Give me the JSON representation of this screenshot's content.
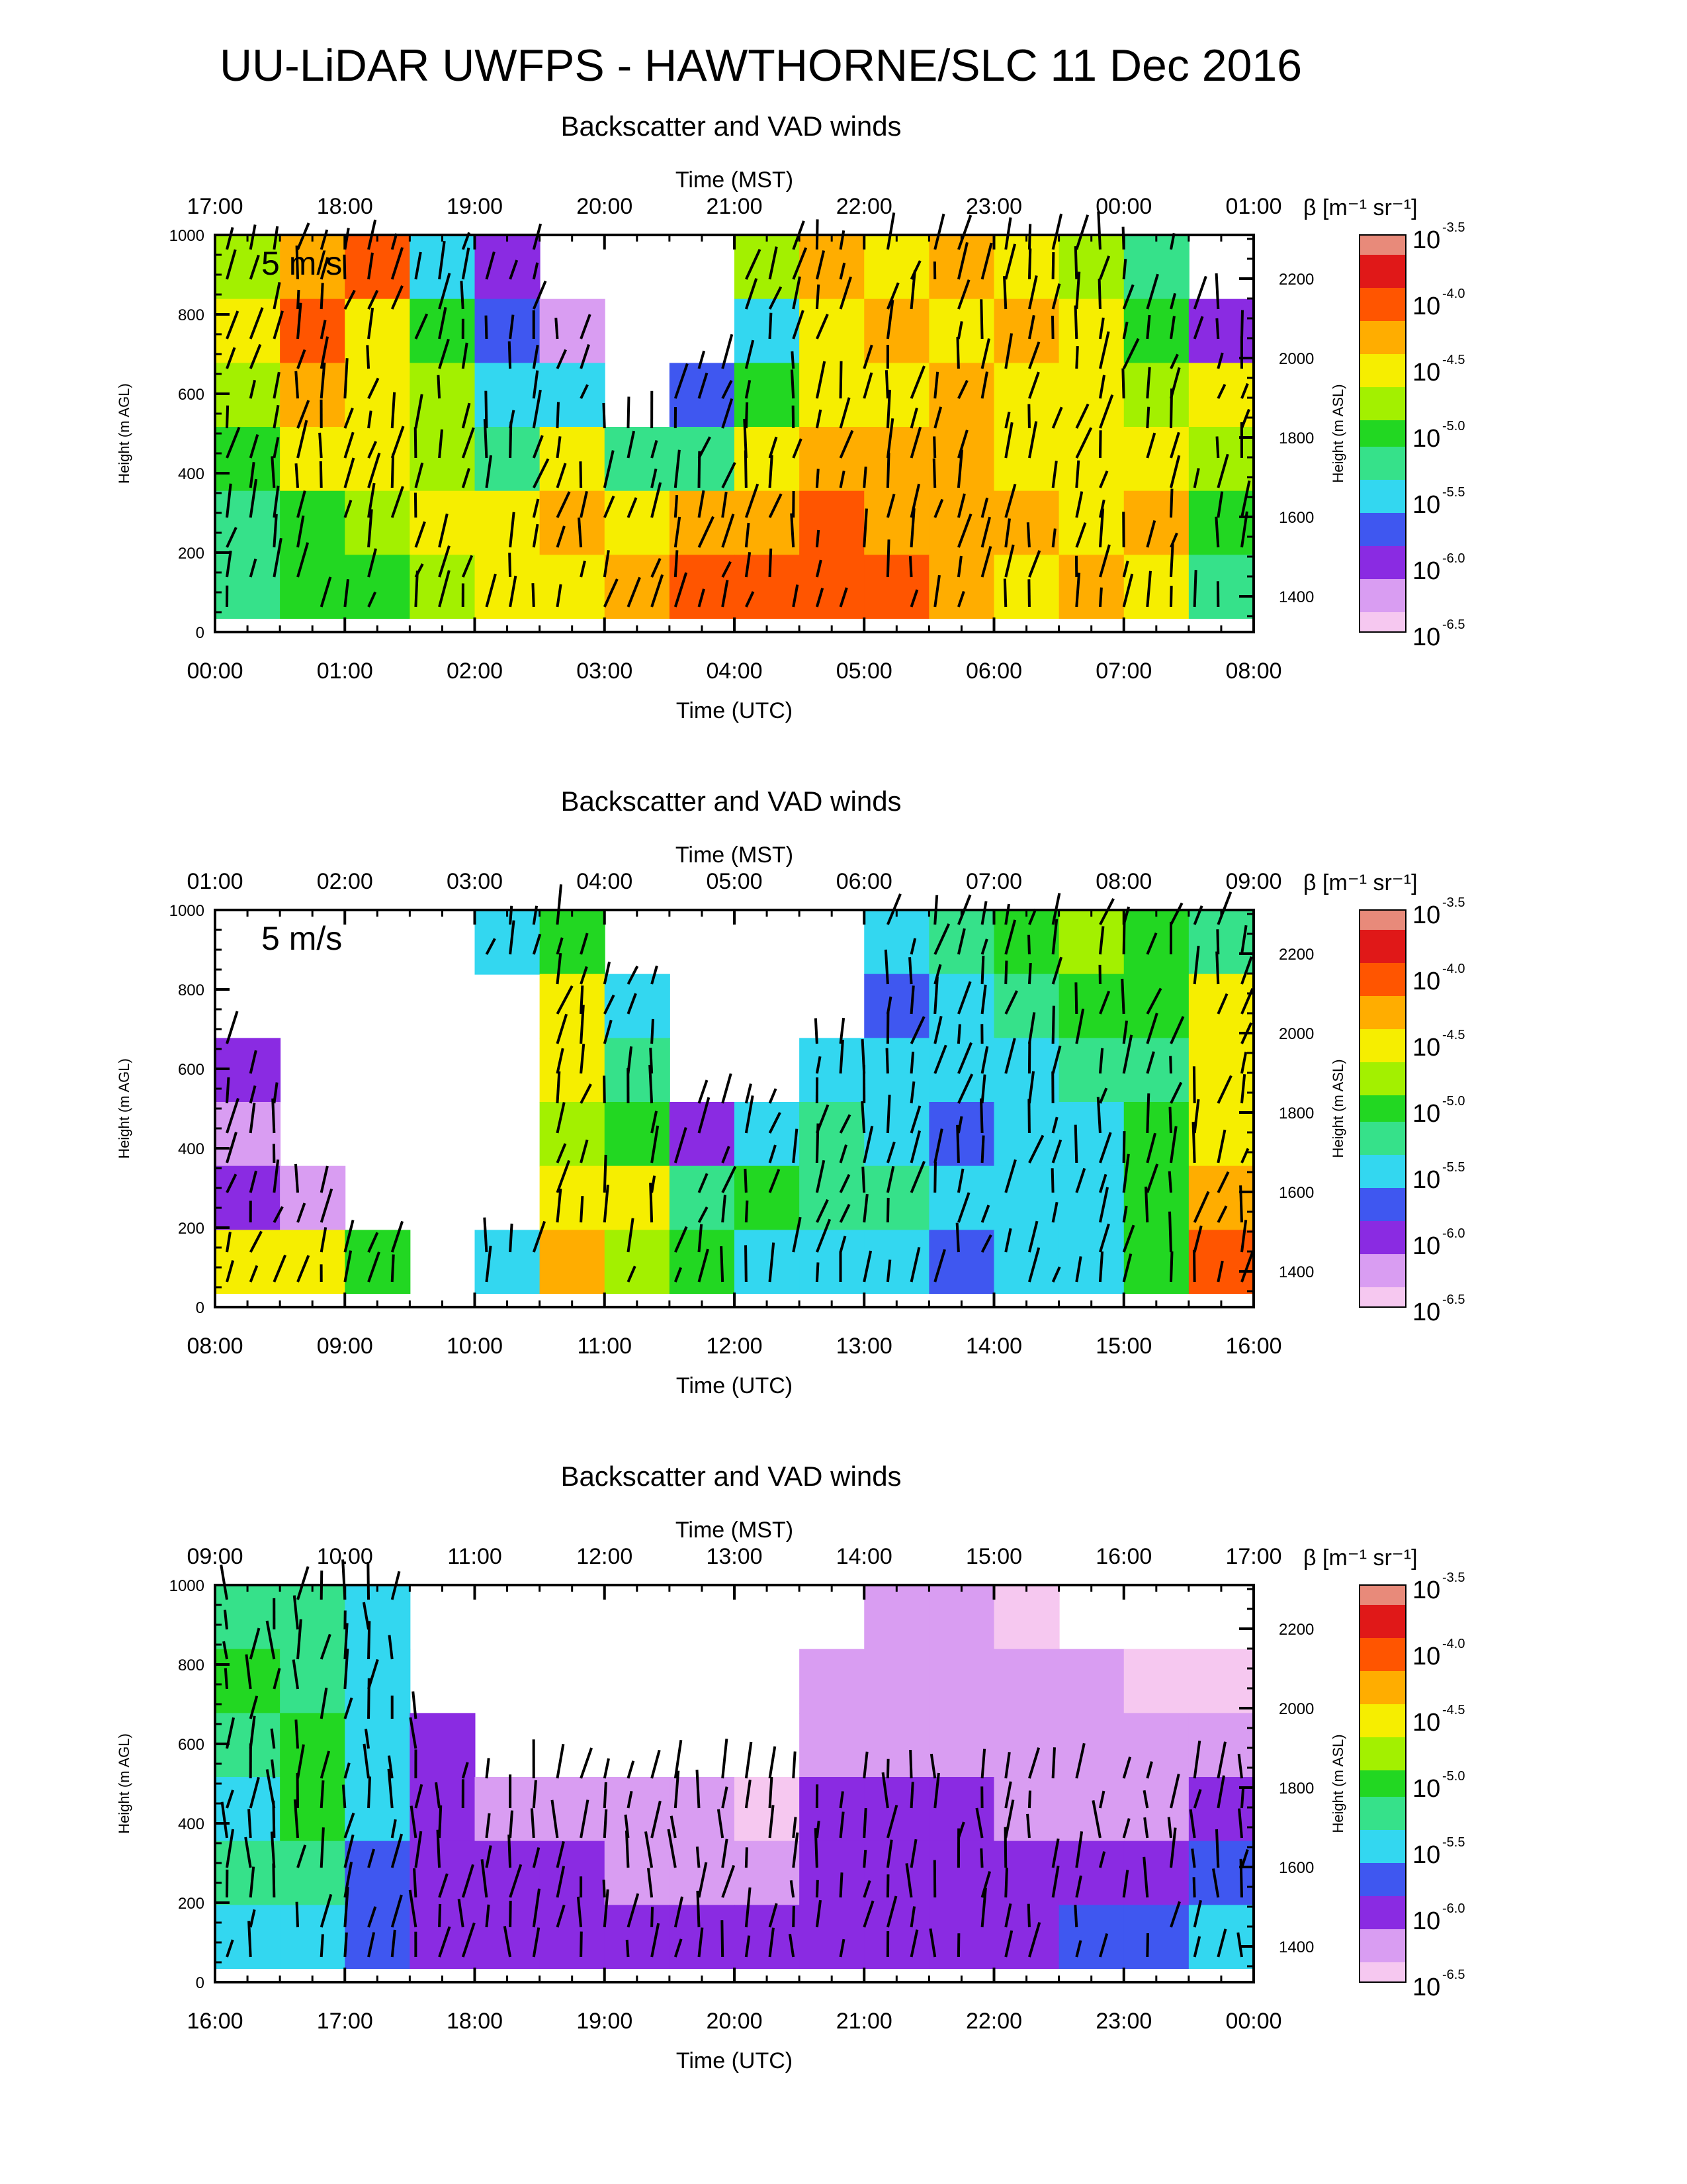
{
  "title": "UU-LiDAR UWFPS - HAWTHORNE/SLC 11 Dec 2016",
  "colors": {
    "scale": [
      "#f6c8f0",
      "#d99df2",
      "#8a2be2",
      "#3f57f0",
      "#33d7f0",
      "#36e18a",
      "#22d722",
      "#a3f000",
      "#f6ee00",
      "#ffad00",
      "#ff5500",
      "#e01818",
      "#e88a7a"
    ],
    "background": "#ffffff",
    "vectors": "#000000"
  },
  "chart_data": [
    {
      "type": "heatmap",
      "title": "Backscatter and VAD winds",
      "xlabel": "Time (UTC)",
      "x2label": "Time (MST)",
      "ylabel": "Height (m AGL)",
      "y2label": "Height (m ASL)",
      "xticks": [
        "00:00",
        "01:00",
        "02:00",
        "03:00",
        "04:00",
        "05:00",
        "06:00",
        "07:00",
        "08:00"
      ],
      "x2ticks": [
        "17:00",
        "18:00",
        "19:00",
        "20:00",
        "21:00",
        "22:00",
        "23:00",
        "00:00",
        "01:00"
      ],
      "yticks": [
        0,
        200,
        400,
        600,
        800,
        1000
      ],
      "y2ticks": [
        1400,
        1600,
        1800,
        2000,
        2200
      ],
      "ylim": [
        0,
        1000
      ],
      "y2lim": [
        1310,
        2310
      ],
      "xlim_hours": [
        0,
        8
      ],
      "colorbar": {
        "label_symbol": "β",
        "label_units": "[m-1 sr-1]",
        "label_text": "β [m⁻¹ sr⁻¹]",
        "exponents": [
          "-3.5",
          "-4.0",
          "-4.5",
          "-5.0",
          "-5.5",
          "-6.0",
          "-6.5"
        ],
        "base": "10",
        "range_log10": [
          -6.5,
          -3.5
        ]
      },
      "vector_key": "5 m/s",
      "backscatter_log10": [
        [
          -4.8,
          -4.2,
          -3.9,
          -5.4,
          -6.0,
          -6.6,
          -6.6,
          -6.6,
          -4.8,
          -4.2,
          -4.6,
          -4.3,
          -4.4,
          -4.8,
          -5.2,
          -6.6
        ],
        [
          -4.6,
          -4.0,
          -4.5,
          -5.0,
          -5.8,
          -6.2,
          -6.6,
          -6.6,
          -5.5,
          -4.4,
          -4.2,
          -4.5,
          -4.3,
          -4.6,
          -5.0,
          -6.0
        ],
        [
          -4.8,
          -4.3,
          -4.4,
          -4.8,
          -5.5,
          -5.4,
          -6.6,
          -5.8,
          -4.9,
          -4.5,
          -4.4,
          -4.3,
          -4.5,
          -4.5,
          -4.8,
          -4.6
        ],
        [
          -5.0,
          -4.6,
          -4.6,
          -4.7,
          -5.3,
          -4.5,
          -5.2,
          -5.2,
          -4.6,
          -4.3,
          -4.3,
          -4.2,
          -4.4,
          -4.6,
          -4.4,
          -4.8
        ],
        [
          -5.2,
          -5.0,
          -4.8,
          -4.6,
          -4.5,
          -4.3,
          -4.6,
          -4.3,
          -4.2,
          -4.1,
          -4.2,
          -4.3,
          -4.3,
          -4.5,
          -4.3,
          -5.0
        ],
        [
          -5.3,
          -5.1,
          -5.0,
          -4.8,
          -4.4,
          -4.4,
          -4.2,
          -4.1,
          -4.0,
          -4.1,
          -4.1,
          -4.2,
          -4.4,
          -4.3,
          -4.4,
          -5.2
        ]
      ]
    },
    {
      "type": "heatmap",
      "title": "Backscatter and VAD winds",
      "xlabel": "Time (UTC)",
      "x2label": "Time (MST)",
      "ylabel": "Height (m AGL)",
      "y2label": "Height (m ASL)",
      "xticks": [
        "08:00",
        "09:00",
        "10:00",
        "11:00",
        "12:00",
        "13:00",
        "14:00",
        "15:00",
        "16:00"
      ],
      "x2ticks": [
        "01:00",
        "02:00",
        "03:00",
        "04:00",
        "05:00",
        "06:00",
        "07:00",
        "08:00",
        "09:00"
      ],
      "yticks": [
        0,
        200,
        400,
        600,
        800,
        1000
      ],
      "y2ticks": [
        1400,
        1600,
        1800,
        2000,
        2200
      ],
      "ylim": [
        0,
        1000
      ],
      "y2lim": [
        1310,
        2310
      ],
      "xlim_hours": [
        8,
        16
      ],
      "colorbar": {
        "label_symbol": "β",
        "label_units": "[m-1 sr-1]",
        "label_text": "β [m⁻¹ sr⁻¹]",
        "exponents": [
          "-3.5",
          "-4.0",
          "-4.5",
          "-5.0",
          "-5.5",
          "-6.0",
          "-6.5"
        ],
        "base": "10",
        "range_log10": [
          -6.5,
          -3.5
        ]
      },
      "vector_key": "5 m/s",
      "backscatter_log10": [
        [
          -6.6,
          -6.6,
          -6.6,
          -6.6,
          -5.4,
          -5.0,
          -6.6,
          -6.6,
          -6.6,
          -6.6,
          -5.5,
          -5.2,
          -5.0,
          -4.8,
          -4.9,
          -5.2
        ],
        [
          -6.6,
          -6.6,
          -6.6,
          -6.6,
          -6.6,
          -4.6,
          -5.4,
          -6.6,
          -6.6,
          -6.6,
          -5.8,
          -5.4,
          -5.2,
          -5.0,
          -5.0,
          -4.6
        ],
        [
          -6.1,
          -6.6,
          -6.6,
          -6.6,
          -6.6,
          -4.6,
          -5.2,
          -6.6,
          -6.6,
          -5.6,
          -5.4,
          -5.6,
          -5.4,
          -5.2,
          -5.2,
          -4.6
        ],
        [
          -6.2,
          -6.6,
          -6.6,
          -6.6,
          -6.6,
          -4.7,
          -4.9,
          -6.1,
          -5.5,
          -5.2,
          -5.4,
          -5.8,
          -5.6,
          -5.4,
          -5.0,
          -4.4
        ],
        [
          -6.0,
          -6.3,
          -6.6,
          -6.6,
          -6.6,
          -4.5,
          -4.5,
          -5.2,
          -5.0,
          -5.2,
          -5.2,
          -5.6,
          -5.6,
          -5.4,
          -5.0,
          -4.2
        ],
        [
          -4.6,
          -4.4,
          -5.0,
          -6.6,
          -5.6,
          -4.2,
          -4.8,
          -5.0,
          -5.4,
          -5.4,
          -5.6,
          -5.8,
          -5.6,
          -5.4,
          -5.0,
          -4.0
        ]
      ]
    },
    {
      "type": "heatmap",
      "title": "Backscatter and VAD winds",
      "xlabel": "Time (UTC)",
      "x2label": "Time (MST)",
      "ylabel": "Height (m AGL)",
      "y2label": "Height (m ASL)",
      "xticks": [
        "16:00",
        "17:00",
        "18:00",
        "19:00",
        "20:00",
        "21:00",
        "22:00",
        "23:00",
        "00:00"
      ],
      "x2ticks": [
        "09:00",
        "10:00",
        "11:00",
        "12:00",
        "13:00",
        "14:00",
        "15:00",
        "16:00",
        "17:00"
      ],
      "yticks": [
        0,
        200,
        400,
        600,
        800,
        1000
      ],
      "y2ticks": [
        1400,
        1600,
        1800,
        2000,
        2200
      ],
      "ylim": [
        0,
        1000
      ],
      "y2lim": [
        1310,
        2310
      ],
      "xlim_hours": [
        16,
        24
      ],
      "colorbar": {
        "label_symbol": "β",
        "label_units": "[m-1 sr-1]",
        "label_text": "β [m⁻¹ sr⁻¹]",
        "exponents": [
          "-3.5",
          "-4.0",
          "-4.5",
          "-5.0",
          "-5.5",
          "-6.0",
          "-6.5"
        ],
        "base": "10",
        "range_log10": [
          -6.5,
          -3.5
        ]
      },
      "backscatter_log10": [
        [
          -5.2,
          -5.3,
          -5.6,
          -6.6,
          -6.6,
          -6.6,
          -6.6,
          -6.6,
          -6.6,
          -6.6,
          -6.3,
          -6.3,
          -6.4,
          -6.6,
          -6.6,
          -6.6
        ],
        [
          -5.0,
          -5.2,
          -5.5,
          -6.6,
          -6.6,
          -6.6,
          -6.6,
          -6.6,
          -6.6,
          -6.3,
          -6.2,
          -6.3,
          -6.2,
          -6.3,
          -6.4,
          -6.5
        ],
        [
          -5.2,
          -5.0,
          -5.4,
          -6.0,
          -6.6,
          -6.6,
          -6.6,
          -6.6,
          -6.6,
          -6.2,
          -6.2,
          -6.2,
          -6.2,
          -6.2,
          -6.3,
          -6.3
        ],
        [
          -5.4,
          -5.0,
          -5.6,
          -6.0,
          -6.2,
          -6.2,
          -6.3,
          -6.3,
          -6.4,
          -6.1,
          -6.1,
          -6.1,
          -6.2,
          -6.2,
          -6.2,
          -6.1
        ],
        [
          -5.3,
          -5.2,
          -5.7,
          -6.0,
          -6.1,
          -6.1,
          -6.2,
          -6.2,
          -6.2,
          -6.0,
          -6.0,
          -6.0,
          -6.1,
          -6.1,
          -6.0,
          -5.8
        ],
        [
          -5.5,
          -5.4,
          -5.8,
          -5.9,
          -6.0,
          -6.0,
          -6.1,
          -6.0,
          -6.0,
          -5.9,
          -5.9,
          -5.9,
          -5.9,
          -5.8,
          -5.7,
          -5.6
        ]
      ]
    }
  ]
}
